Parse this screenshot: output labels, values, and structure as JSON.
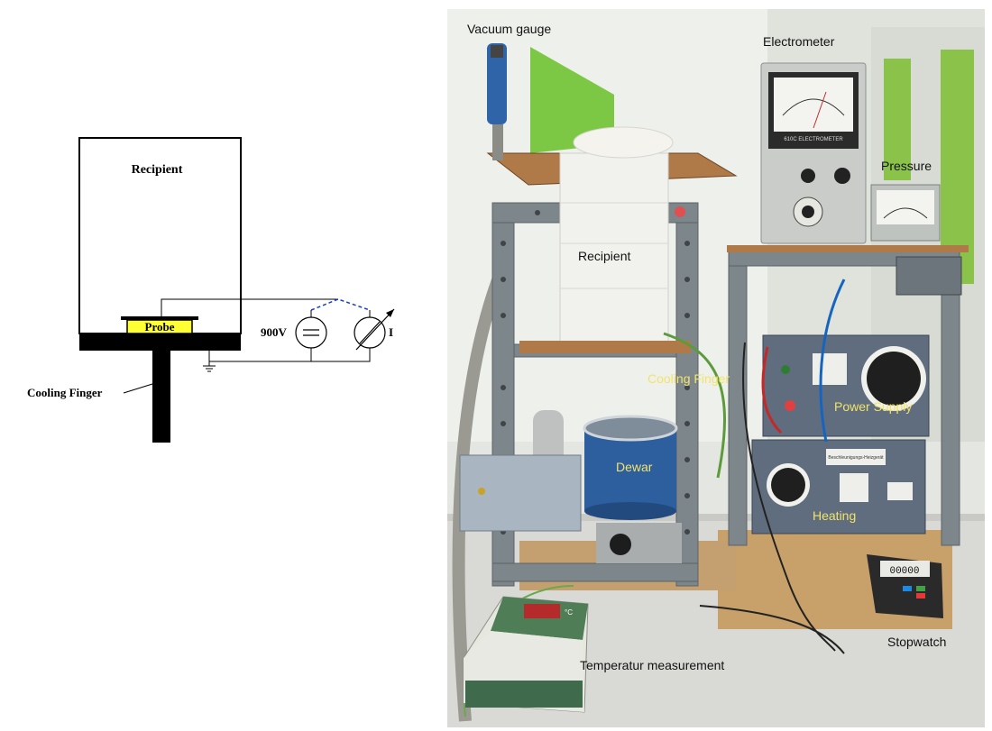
{
  "schematic": {
    "recipient_label": "Recipient",
    "probe_label": "Probe",
    "voltage_label": "900V",
    "current_label": "I",
    "cooling_finger_label": "Cooling Finger"
  },
  "photo": {
    "labels": {
      "vacuum_gauge": "Vacuum gauge",
      "electrometer": "Electrometer",
      "pressure": "Pressure",
      "recipient": "Recipient",
      "cooling_finger": "Cooling Finger",
      "power_supply": "Power Supply",
      "dewar": "Dewar",
      "heating": "Heating",
      "stopwatch": "Stopwatch",
      "temperature_measurement": "Temperatur measurement"
    },
    "label_colors": {
      "dark": "#111111",
      "highlight": "#f2e36a"
    },
    "device_texts": {
      "electrometer_brand": "610C ELECTROMETER",
      "thermometer_unit": "°C",
      "stopwatch_display": "00000",
      "heating_panel_text": "Beschleunigungs-Heizgerät"
    }
  }
}
